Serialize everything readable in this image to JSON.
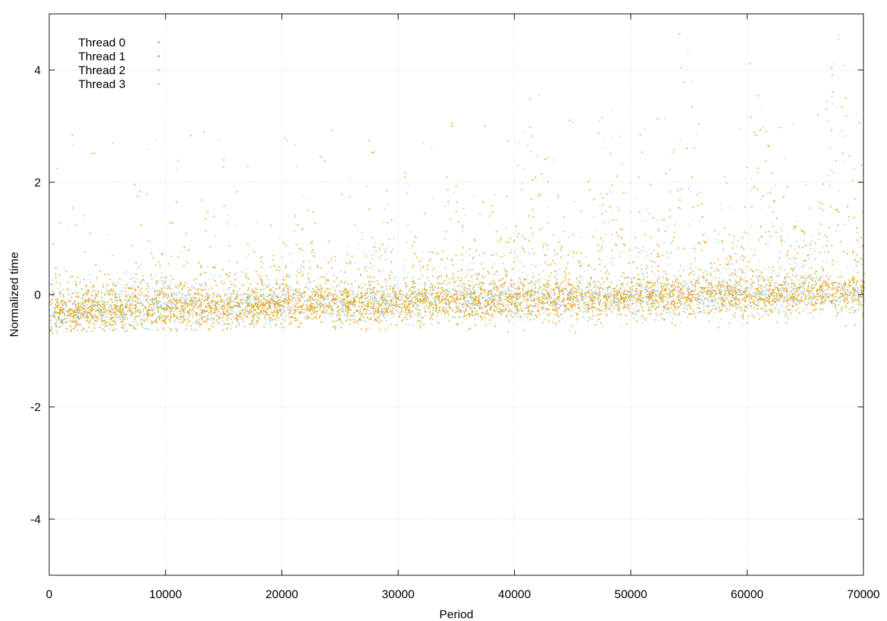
{
  "chart_data": {
    "type": "scatter",
    "title": "",
    "xlabel": "Period",
    "ylabel": "Normalized time",
    "xlim": [
      0,
      70000
    ],
    "ylim": [
      -5,
      5
    ],
    "x_ticks": [
      0,
      10000,
      20000,
      30000,
      40000,
      50000,
      60000,
      70000
    ],
    "y_ticks": [
      -4,
      -2,
      0,
      2,
      4
    ],
    "x_tick_labels": [
      "0",
      "10000",
      "20000",
      "30000",
      "40000",
      "50000",
      "60000",
      "70000"
    ],
    "y_tick_labels": [
      "-4",
      "-2",
      "0",
      "2",
      "4"
    ],
    "grid": true,
    "legend_position": "top-left",
    "series": [
      {
        "name": "Thread 0",
        "color": "#9467bd"
      },
      {
        "name": "Thread 1",
        "color": "#2a9d4a"
      },
      {
        "name": "Thread 2",
        "color": "#56b4e9"
      },
      {
        "name": "Thread 3",
        "color": "#e6a817"
      }
    ],
    "envelope": {
      "x": [
        0,
        5000,
        10000,
        20000,
        30000,
        40000,
        50000,
        60000,
        70000
      ],
      "center": [
        -0.35,
        -0.3,
        -0.25,
        -0.2,
        -0.15,
        -0.1,
        -0.05,
        0.0,
        0.05
      ],
      "lower": [
        -0.7,
        -0.65,
        -0.65,
        -0.6,
        -0.65,
        -0.65,
        -0.7,
        -0.65,
        -0.6
      ],
      "upper_typical": [
        0.4,
        0.5,
        0.6,
        0.8,
        1.0,
        1.3,
        1.5,
        1.6,
        1.8
      ]
    }
  }
}
